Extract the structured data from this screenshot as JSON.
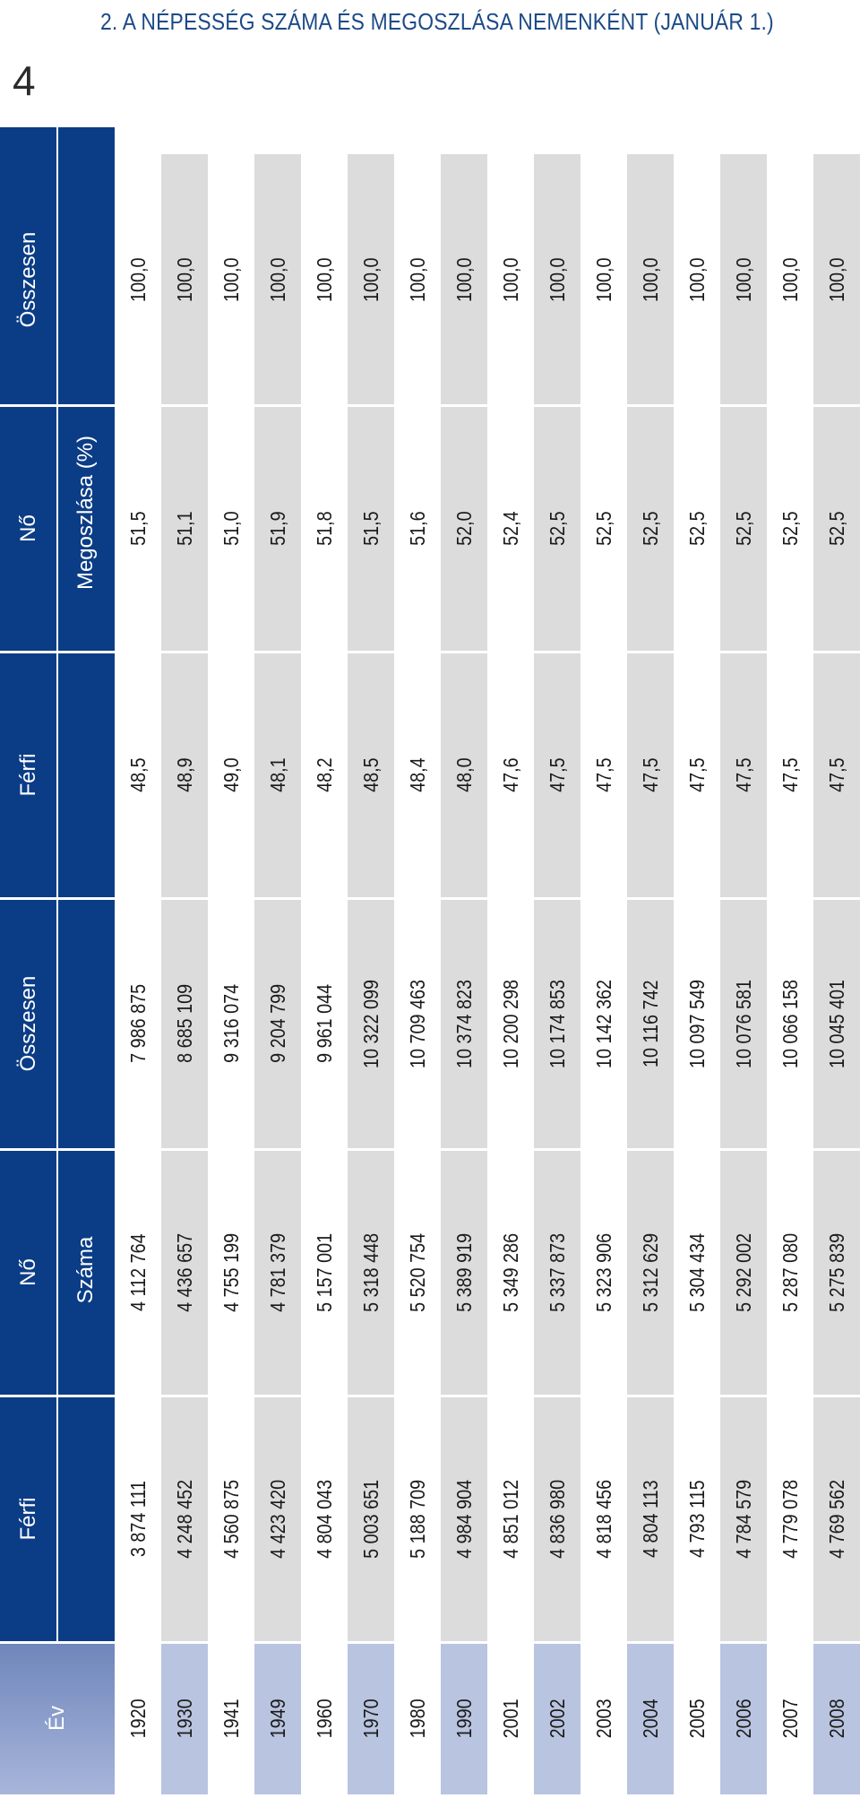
{
  "title": "2. A NÉPESSÉG SZÁMA ÉS MEGOSZLÁSA NEMENKÉNT (JANUÁR 1.)",
  "page_number": "4",
  "headers": {
    "year": "Év",
    "count_group": "Száma",
    "share_group": "Megoszlása (%)",
    "columns": [
      "Férfi",
      "Nő",
      "Összesen",
      "Férfi",
      "Nő",
      "Összesen"
    ]
  },
  "rows": [
    {
      "year": "1920",
      "values": [
        "3 874 111",
        "4 112 764",
        "7 986 875",
        "48,5",
        "51,5",
        "100,0"
      ]
    },
    {
      "year": "1930",
      "values": [
        "4 248 452",
        "4 436 657",
        "8 685 109",
        "48,9",
        "51,1",
        "100,0"
      ]
    },
    {
      "year": "1941",
      "values": [
        "4 560 875",
        "4 755 199",
        "9 316 074",
        "49,0",
        "51,0",
        "100,0"
      ]
    },
    {
      "year": "1949",
      "values": [
        "4 423 420",
        "4 781 379",
        "9 204 799",
        "48,1",
        "51,9",
        "100,0"
      ]
    },
    {
      "year": "1960",
      "values": [
        "4 804 043",
        "5 157 001",
        "9 961 044",
        "48,2",
        "51,8",
        "100,0"
      ]
    },
    {
      "year": "1970",
      "values": [
        "5 003 651",
        "5 318 448",
        "10 322 099",
        "48,5",
        "51,5",
        "100,0"
      ]
    },
    {
      "year": "1980",
      "values": [
        "5 188 709",
        "5 520 754",
        "10 709 463",
        "48,4",
        "51,6",
        "100,0"
      ]
    },
    {
      "year": "1990",
      "values": [
        "4 984 904",
        "5 389 919",
        "10 374 823",
        "48,0",
        "52,0",
        "100,0"
      ]
    },
    {
      "year": "2001",
      "values": [
        "4 851 012",
        "5 349 286",
        "10 200 298",
        "47,6",
        "52,4",
        "100,0"
      ]
    },
    {
      "year": "2002",
      "values": [
        "4 836 980",
        "5 337 873",
        "10 174 853",
        "47,5",
        "52,5",
        "100,0"
      ]
    },
    {
      "year": "2003",
      "values": [
        "4 818 456",
        "5 323 906",
        "10 142 362",
        "47,5",
        "52,5",
        "100,0"
      ]
    },
    {
      "year": "2004",
      "values": [
        "4 804 113",
        "5 312 629",
        "10 116 742",
        "47,5",
        "52,5",
        "100,0"
      ]
    },
    {
      "year": "2005",
      "values": [
        "4 793 115",
        "5 304 434",
        "10 097 549",
        "47,5",
        "52,5",
        "100,0"
      ]
    },
    {
      "year": "2006",
      "values": [
        "4 784 579",
        "5 292 002",
        "10 076 581",
        "47,5",
        "52,5",
        "100,0"
      ]
    },
    {
      "year": "2007",
      "values": [
        "4 779 078",
        "5 287 080",
        "10 066 158",
        "47,5",
        "52,5",
        "100,0"
      ]
    },
    {
      "year": "2008",
      "values": [
        "4 769 562",
        "5 275 839",
        "10 045 401",
        "47,5",
        "52,5",
        "100,0"
      ]
    }
  ],
  "colors": {
    "header_bg": "#0b3d86",
    "year_header_bg": "#8a9cc8",
    "stripe_year": "#b9c4e0",
    "stripe_data": "#dcdcdc"
  }
}
